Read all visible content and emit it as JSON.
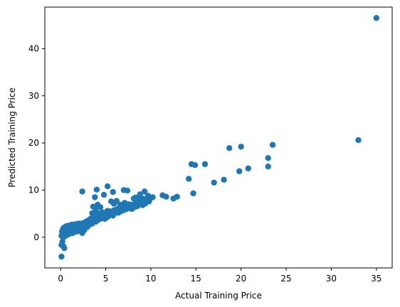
{
  "chart_data": {
    "type": "scatter",
    "title": "",
    "xlabel": "Actual Training Price",
    "ylabel": "Predicted Training Price",
    "xlim": [
      -1.75,
      36.75
    ],
    "ylim": [
      -6.5,
      48.8
    ],
    "x_ticks": [
      0,
      5,
      10,
      15,
      20,
      25,
      30,
      35
    ],
    "y_ticks": [
      0,
      10,
      20,
      30,
      40
    ],
    "grid": false,
    "legend": "none",
    "marker_color": "#1f77b4",
    "series": [
      {
        "points": [
          [
            0.1,
            -4.1
          ],
          [
            0.1,
            -1.6
          ],
          [
            0.2,
            -0.9
          ],
          [
            0.3,
            -1.9
          ],
          [
            0.4,
            -2.3
          ],
          [
            0.1,
            0.3
          ],
          [
            0.15,
            1.2
          ],
          [
            0.2,
            0.6
          ],
          [
            0.25,
            1.7
          ],
          [
            0.3,
            0.9
          ],
          [
            0.35,
            2.0
          ],
          [
            0.4,
            0.1
          ],
          [
            0.45,
            1.4
          ],
          [
            0.5,
            2.2
          ],
          [
            0.55,
            0.7
          ],
          [
            0.6,
            1.8
          ],
          [
            0.65,
            1.1
          ],
          [
            0.7,
            2.4
          ],
          [
            0.75,
            0.5
          ],
          [
            0.8,
            1.6
          ],
          [
            0.85,
            2.1
          ],
          [
            0.9,
            1.0
          ],
          [
            0.95,
            1.9
          ],
          [
            1.0,
            2.5
          ],
          [
            1.05,
            0.8
          ],
          [
            1.1,
            1.5
          ],
          [
            1.15,
            2.3
          ],
          [
            1.2,
            1.2
          ],
          [
            1.25,
            2.7
          ],
          [
            1.3,
            1.7
          ],
          [
            1.35,
            0.9
          ],
          [
            1.4,
            2.2
          ],
          [
            1.5,
            1.4
          ],
          [
            1.55,
            2.6
          ],
          [
            1.6,
            1.9
          ],
          [
            1.7,
            2.8
          ],
          [
            1.75,
            1.2
          ],
          [
            1.8,
            2.3
          ],
          [
            1.9,
            1.6
          ],
          [
            2.0,
            2.9
          ],
          [
            2.05,
            2.0
          ],
          [
            2.1,
            1.3
          ],
          [
            2.2,
            2.6
          ],
          [
            2.3,
            1.8
          ],
          [
            2.4,
            0.9
          ],
          [
            2.45,
            3.0
          ],
          [
            2.5,
            2.2
          ],
          [
            2.6,
            1.5
          ],
          [
            2.7,
            2.8
          ],
          [
            2.8,
            3.3
          ],
          [
            2.9,
            2.1
          ],
          [
            3.0,
            3.0
          ],
          [
            3.05,
            2.4
          ],
          [
            3.1,
            3.6
          ],
          [
            3.2,
            2.7
          ],
          [
            3.3,
            3.9
          ],
          [
            3.4,
            3.2
          ],
          [
            3.5,
            2.9
          ],
          [
            3.55,
            4.2
          ],
          [
            3.6,
            3.5
          ],
          [
            3.7,
            3.8
          ],
          [
            3.8,
            4.4
          ],
          [
            3.9,
            3.3
          ],
          [
            4.0,
            4.0
          ],
          [
            4.05,
            4.7
          ],
          [
            4.1,
            3.6
          ],
          [
            4.2,
            4.3
          ],
          [
            4.3,
            5.0
          ],
          [
            4.4,
            3.9
          ],
          [
            4.5,
            4.6
          ],
          [
            4.6,
            4.2
          ],
          [
            4.7,
            5.2
          ],
          [
            4.8,
            4.5
          ],
          [
            4.9,
            3.9
          ],
          [
            5.0,
            4.9
          ],
          [
            5.1,
            5.4
          ],
          [
            5.2,
            4.3
          ],
          [
            5.3,
            5.1
          ],
          [
            5.4,
            4.7
          ],
          [
            5.5,
            5.5
          ],
          [
            5.6,
            4.9
          ],
          [
            5.7,
            5.3
          ],
          [
            5.8,
            4.6
          ],
          [
            5.9,
            5.7
          ],
          [
            6.0,
            5.1
          ],
          [
            6.1,
            5.8
          ],
          [
            6.2,
            5.4
          ],
          [
            6.3,
            6.0
          ],
          [
            6.4,
            5.2
          ],
          [
            6.5,
            5.9
          ],
          [
            6.6,
            5.5
          ],
          [
            6.7,
            6.1
          ],
          [
            6.8,
            5.6
          ],
          [
            6.9,
            6.3
          ],
          [
            7.0,
            5.8
          ],
          [
            7.1,
            6.4
          ],
          [
            7.2,
            5.9
          ],
          [
            7.3,
            6.6
          ],
          [
            7.4,
            6.1
          ],
          [
            7.5,
            6.8
          ],
          [
            7.6,
            6.2
          ],
          [
            7.8,
            6.7
          ],
          [
            7.9,
            6.0
          ],
          [
            8.0,
            6.9
          ],
          [
            8.2,
            6.4
          ],
          [
            8.3,
            7.2
          ],
          [
            8.5,
            6.6
          ],
          [
            8.6,
            7.4
          ],
          [
            8.8,
            7.0
          ],
          [
            9.0,
            7.5
          ],
          [
            9.1,
            6.8
          ],
          [
            9.3,
            7.8
          ],
          [
            9.4,
            7.2
          ],
          [
            9.6,
            8.0
          ],
          [
            9.8,
            7.6
          ],
          [
            10.0,
            8.3
          ],
          [
            3.6,
            6.5
          ],
          [
            4.1,
            6.9
          ],
          [
            4.4,
            6.4
          ],
          [
            3.9,
            5.7
          ],
          [
            3.5,
            5.1
          ],
          [
            5.6,
            7.6
          ],
          [
            5.9,
            7.1
          ],
          [
            6.2,
            7.7
          ],
          [
            6.6,
            6.9
          ],
          [
            7.1,
            7.3
          ],
          [
            7.6,
            7.0
          ],
          [
            8.1,
            8.2
          ],
          [
            8.4,
            7.9
          ],
          [
            8.9,
            8.4
          ],
          [
            9.2,
            8.1
          ],
          [
            9.5,
            7.9
          ],
          [
            1.0,
            1.3
          ],
          [
            1.2,
            1.9
          ],
          [
            1.6,
            2.4
          ],
          [
            1.8,
            2.0
          ],
          [
            2.2,
            2.4
          ],
          [
            2.6,
            2.6
          ],
          [
            2.9,
            2.9
          ],
          [
            3.2,
            3.4
          ],
          [
            3.4,
            3.7
          ],
          [
            3.7,
            4.1
          ],
          [
            4.2,
            4.8
          ],
          [
            4.6,
            5.3
          ],
          [
            4.8,
            5.0
          ],
          [
            5.2,
            5.6
          ],
          [
            2.4,
            9.7
          ],
          [
            4.0,
            10.1
          ],
          [
            3.8,
            8.5
          ],
          [
            4.8,
            9.0
          ],
          [
            5.2,
            10.8
          ],
          [
            5.8,
            9.6
          ],
          [
            7.0,
            10.0
          ],
          [
            7.4,
            9.9
          ],
          [
            9.3,
            9.7
          ],
          [
            8.3,
            8.4
          ],
          [
            8.8,
            9.1
          ],
          [
            9.7,
            8.8
          ],
          [
            10.2,
            8.5
          ],
          [
            11.3,
            8.9
          ],
          [
            11.7,
            8.6
          ],
          [
            12.5,
            8.2
          ],
          [
            12.9,
            8.6
          ],
          [
            14.2,
            12.4
          ],
          [
            14.5,
            15.5
          ],
          [
            14.7,
            9.3
          ],
          [
            14.9,
            15.3
          ],
          [
            16.0,
            15.5
          ],
          [
            17.0,
            11.6
          ],
          [
            18.1,
            12.2
          ],
          [
            18.7,
            18.9
          ],
          [
            19.8,
            14.0
          ],
          [
            20.0,
            19.2
          ],
          [
            20.8,
            14.6
          ],
          [
            23.0,
            16.8
          ],
          [
            23.0,
            15.0
          ],
          [
            23.5,
            19.6
          ],
          [
            33.0,
            20.6
          ],
          [
            35.0,
            46.5
          ]
        ]
      }
    ]
  }
}
